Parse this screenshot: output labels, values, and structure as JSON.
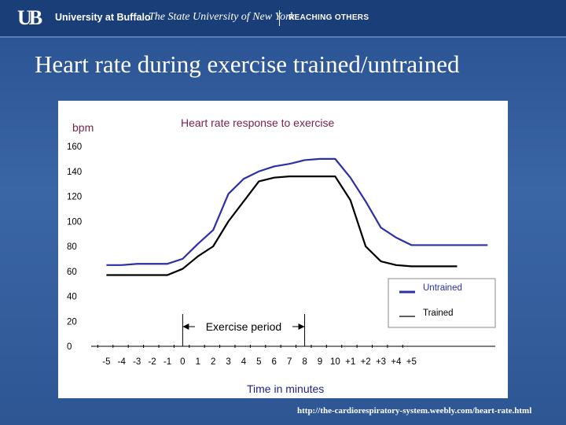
{
  "header": {
    "logo_text": "UB",
    "university": "University at Buffalo",
    "subtitle": "The State University of New York",
    "tagline": "REACHING OTHERS"
  },
  "slide": {
    "title": "Heart rate during exercise trained/untrained",
    "source": "http://the-cardiorespiratory-system.weebly.com/heart-rate.html"
  },
  "colors": {
    "untrained": "#2b2fa8",
    "trained": "#000000"
  },
  "chart_data": {
    "type": "line",
    "title": "Heart rate response to exercise",
    "ylabel": "bpm",
    "xlabel": "Time in minutes",
    "ylim": [
      0,
      160
    ],
    "yticks": [
      0,
      20,
      40,
      60,
      80,
      100,
      120,
      140,
      160
    ],
    "xtick_labels": [
      "-5",
      "-4",
      "-3",
      "-2",
      "-1",
      "0",
      "1",
      "2",
      "3",
      "4",
      "5",
      "6",
      "7",
      "8",
      "9",
      "10",
      "+1",
      "+2",
      "+3",
      "+4",
      "+5"
    ],
    "x_domain": [
      -6,
      20.5
    ],
    "annotation": "Exercise period",
    "exercise_period": [
      0,
      8
    ],
    "series": [
      {
        "name": "Untrained",
        "x": [
          -5,
          -4,
          -3,
          -2,
          -1,
          0,
          1,
          2,
          3,
          4,
          5,
          6,
          7,
          8,
          9,
          10,
          11,
          12,
          13,
          14,
          15,
          16,
          17,
          18,
          19,
          20
        ],
        "values": [
          65,
          65,
          66,
          66,
          66,
          70,
          82,
          93,
          122,
          134,
          140,
          144,
          146,
          149,
          150,
          150,
          135,
          116,
          95,
          87,
          81,
          81,
          81,
          81,
          81,
          81
        ]
      },
      {
        "name": "Trained",
        "x": [
          -5,
          -4,
          -3,
          -2,
          -1,
          0,
          1,
          2,
          3,
          4,
          5,
          6,
          7,
          8,
          9,
          10,
          11,
          12,
          13,
          14,
          15,
          16,
          17,
          18
        ],
        "values": [
          57,
          57,
          57,
          57,
          57,
          62,
          72,
          80,
          100,
          116,
          132,
          135,
          136,
          136,
          136,
          136,
          117,
          80,
          68,
          65,
          64,
          64,
          64,
          64
        ]
      }
    ],
    "legend": [
      "Untrained",
      "Trained"
    ],
    "legend_position": "bottom-right"
  }
}
